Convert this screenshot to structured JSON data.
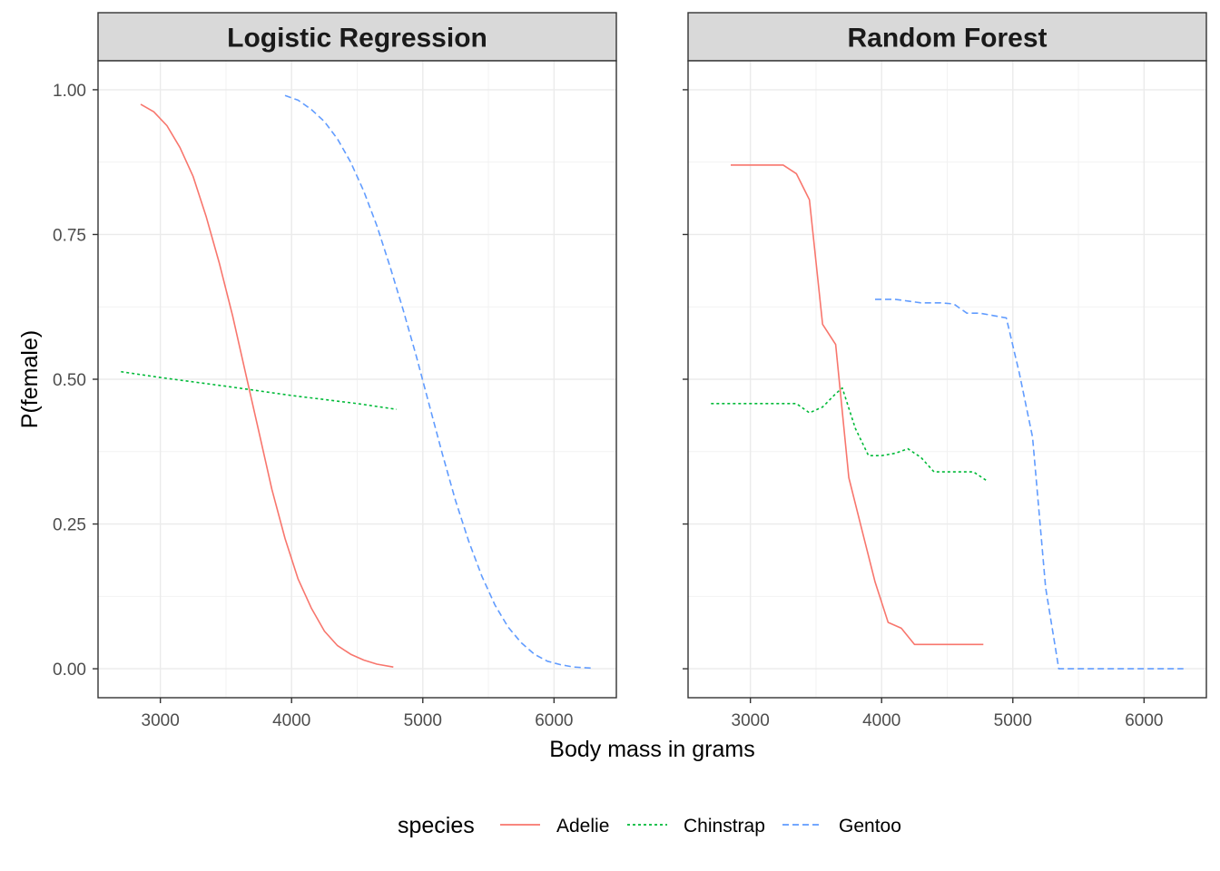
{
  "chart_data": {
    "type": "line",
    "xlabel": "Body mass in grams",
    "ylabel": "P(female)",
    "xlim": [
      2525,
      6475
    ],
    "ylim": [
      -0.05,
      1.05
    ],
    "x_ticks": [
      3000,
      4000,
      5000,
      6000
    ],
    "y_ticks": [
      0,
      0.25,
      0.5,
      0.75,
      1.0
    ],
    "x_tick_labels": [
      "3000",
      "4000",
      "5000",
      "6000"
    ],
    "y_tick_labels": [
      "0.00",
      "0.25",
      "0.50",
      "0.75",
      "1.00"
    ],
    "grid": true,
    "legend": {
      "title": "species",
      "position": "bottom",
      "entries": [
        {
          "name": "Adelie",
          "color": "#F8766D",
          "dash": "solid"
        },
        {
          "name": "Chinstrap",
          "color": "#00BA38",
          "dash": "dotted"
        },
        {
          "name": "Gentoo",
          "color": "#619CFF",
          "dash": "dashed"
        }
      ]
    },
    "panels": [
      {
        "title": "Logistic Regression",
        "series": [
          {
            "name": "Adelie",
            "x": [
              2850,
              2950,
              3050,
              3150,
              3250,
              3350,
              3450,
              3550,
              3650,
              3750,
              3850,
              3950,
              4050,
              4150,
              4250,
              4350,
              4450,
              4550,
              4650,
              4775
            ],
            "y": [
              0.975,
              0.962,
              0.938,
              0.9,
              0.85,
              0.78,
              0.7,
              0.61,
              0.51,
              0.41,
              0.31,
              0.225,
              0.155,
              0.105,
              0.065,
              0.04,
              0.025,
              0.015,
              0.008,
              0.003
            ]
          },
          {
            "name": "Chinstrap",
            "x": [
              2700,
              3000,
              3500,
              4000,
              4500,
              4800
            ],
            "y": [
              0.513,
              0.503,
              0.488,
              0.472,
              0.458,
              0.448
            ]
          },
          {
            "name": "Gentoo",
            "x": [
              3950,
              4050,
              4150,
              4250,
              4350,
              4450,
              4550,
              4650,
              4750,
              4850,
              4950,
              5050,
              5150,
              5250,
              5350,
              5450,
              5550,
              5650,
              5750,
              5850,
              5950,
              6050,
              6150,
              6300
            ],
            "y": [
              0.99,
              0.982,
              0.966,
              0.945,
              0.915,
              0.875,
              0.825,
              0.765,
              0.695,
              0.62,
              0.54,
              0.455,
              0.37,
              0.29,
              0.22,
              0.16,
              0.11,
              0.072,
              0.045,
              0.025,
              0.013,
              0.007,
              0.003,
              0.001
            ]
          }
        ]
      },
      {
        "title": "Random Forest",
        "series": [
          {
            "name": "Adelie",
            "x": [
              2850,
              3000,
              3250,
              3350,
              3450,
              3550,
              3650,
              3750,
              3850,
              3950,
              4050,
              4150,
              4250,
              4500,
              4775
            ],
            "y": [
              0.87,
              0.87,
              0.87,
              0.855,
              0.81,
              0.595,
              0.56,
              0.33,
              0.24,
              0.15,
              0.08,
              0.07,
              0.042,
              0.042,
              0.042
            ]
          },
          {
            "name": "Chinstrap",
            "x": [
              2700,
              3000,
              3350,
              3450,
              3550,
              3650,
              3700,
              3800,
              3900,
              4000,
              4100,
              4200,
              4300,
              4400,
              4700,
              4800
            ],
            "y": [
              0.458,
              0.458,
              0.458,
              0.442,
              0.452,
              0.475,
              0.485,
              0.415,
              0.368,
              0.368,
              0.372,
              0.38,
              0.365,
              0.34,
              0.34,
              0.325
            ]
          },
          {
            "name": "Gentoo",
            "x": [
              3950,
              4100,
              4200,
              4300,
              4450,
              4550,
              4650,
              4750,
              4850,
              4950,
              5050,
              5150,
              5250,
              5350,
              5500,
              6300
            ],
            "y": [
              0.638,
              0.638,
              0.635,
              0.632,
              0.632,
              0.63,
              0.614,
              0.614,
              0.61,
              0.606,
              0.51,
              0.4,
              0.14,
              0.0,
              0.0,
              0.0
            ]
          }
        ]
      }
    ]
  }
}
